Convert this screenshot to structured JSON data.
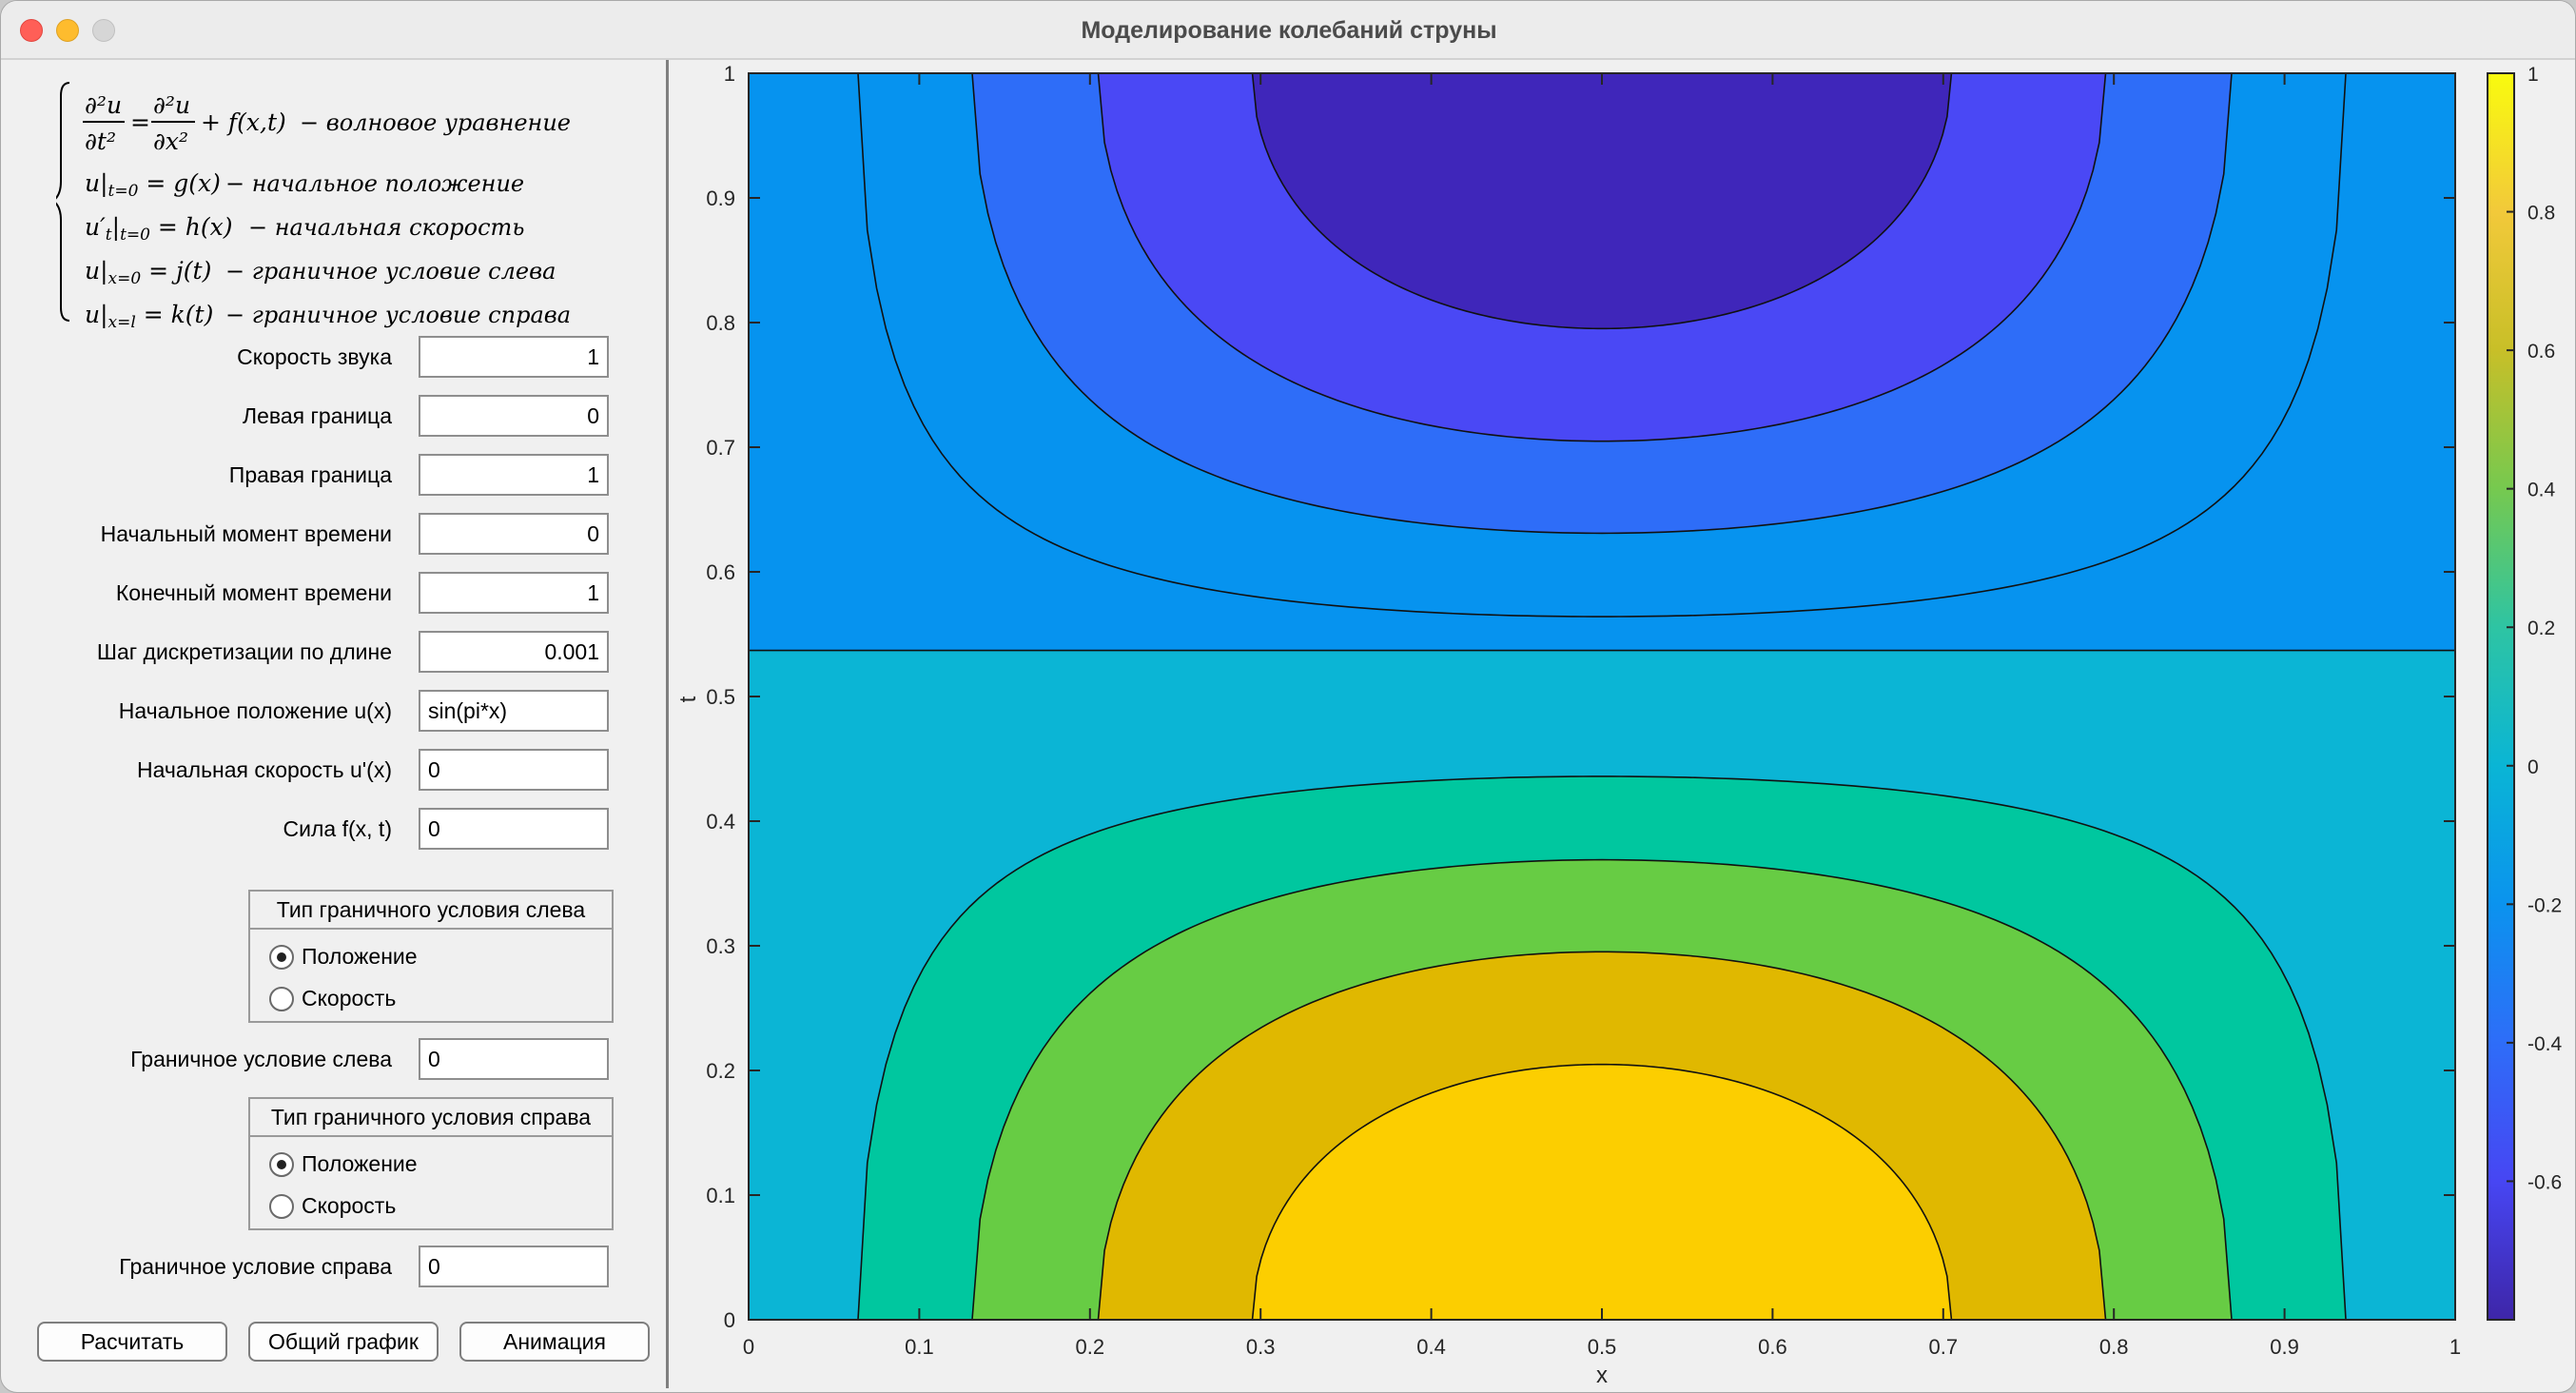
{
  "window": {
    "title": "Моделирование колебаний струны"
  },
  "equations": {
    "eq1_desc": "− волновое уравнение",
    "eq2_desc": "− начальное положение",
    "eq3_desc": "− начальная скорость",
    "eq4_desc": "− граничное условие слева",
    "eq5_desc": "− граничное условие справа"
  },
  "fields": [
    {
      "label": "Скорость звука",
      "value": "1"
    },
    {
      "label": "Левая граница",
      "value": "0"
    },
    {
      "label": "Правая граница",
      "value": "1"
    },
    {
      "label": "Начальный момент времени",
      "value": "0"
    },
    {
      "label": "Конечный момент времени",
      "value": "1"
    },
    {
      "label": "Шаг дискретизации по длине",
      "value": "0.001"
    },
    {
      "label": "Начальное положение u(x)",
      "value": "sin(pi*x)"
    },
    {
      "label": "Начальная скорость u'(x)",
      "value": "0"
    },
    {
      "label": "Сила f(x, t)",
      "value": "0"
    }
  ],
  "left_bc": {
    "group_title": "Тип граничного условия слева",
    "option_position": "Положение",
    "option_velocity": "Скорость",
    "selected": "position",
    "value_label": "Граничное условие слева",
    "value": "0"
  },
  "right_bc": {
    "group_title": "Тип граничного условия справа",
    "option_position": "Положение",
    "option_velocity": "Скорость",
    "selected": "position",
    "value_label": "Граничное условие справа",
    "value": "0"
  },
  "buttons": {
    "calculate": "Расчитать",
    "overall_plot": "Общий график",
    "animation": "Анимация"
  },
  "chart_data": {
    "type": "contourf",
    "title": "",
    "xlabel": "x",
    "ylabel": "t",
    "xlim": [
      0,
      1
    ],
    "ylim": [
      0,
      1
    ],
    "xticks": [
      "0",
      "0.1",
      "0.2",
      "0.3",
      "0.4",
      "0.5",
      "0.6",
      "0.7",
      "0.8",
      "0.9",
      "1"
    ],
    "yticks": [
      "0",
      "0.1",
      "0.2",
      "0.3",
      "0.4",
      "0.5",
      "0.6",
      "0.7",
      "0.8",
      "0.9",
      "1"
    ],
    "function": "u(x,t) = sin(pi*x) * cos(pi*t)",
    "levels": [
      -0.8,
      -0.6,
      -0.4,
      -0.2,
      0,
      0.2,
      0.4,
      0.6,
      0.8
    ],
    "level_colors": [
      "#3f26ba",
      "#4a48f5",
      "#2e6df8",
      "#0693ef",
      "#0bb5d5",
      "#00c79f",
      "#67cc44",
      "#e0b800",
      "#fcce00"
    ],
    "colorbar": {
      "range": [
        -0.8,
        1
      ],
      "ticks": [
        "1",
        "0.8",
        "0.6",
        "0.4",
        "0.2",
        "0",
        "-0.2",
        "-0.4",
        "-0.6"
      ],
      "colors": [
        "#3e26a8",
        "#4746f3",
        "#2e6df8",
        "#0b93ee",
        "#0ab5d5",
        "#2ec4a3",
        "#76c94f",
        "#c8bf28",
        "#f2c93a",
        "#f9fb0e"
      ]
    },
    "grid": false,
    "legend": "none"
  }
}
